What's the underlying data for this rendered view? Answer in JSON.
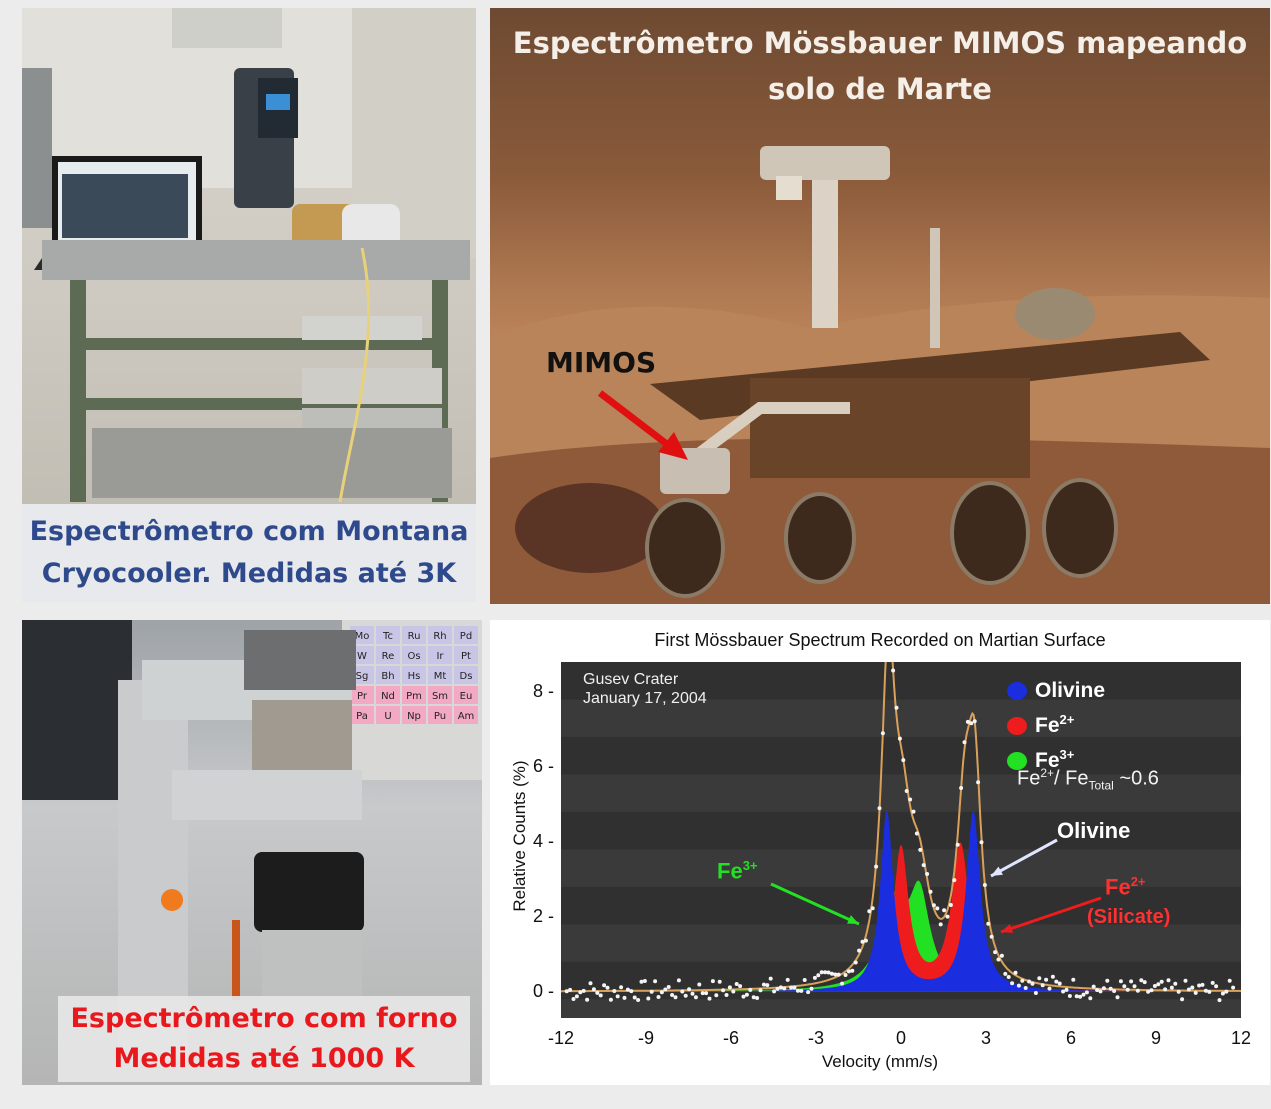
{
  "lab_panel": {
    "caption_line1": "Espectrômetro com Montana",
    "caption_line2": "Cryocooler. Medidas até 3K",
    "caption_color": "#2e4a8c"
  },
  "mars_panel": {
    "title_line1": "Espectrômetro Mössbauer MIMOS mapeando",
    "title_line2": "solo de Marte",
    "pointer_label": "MIMOS",
    "arrow_color": "#e01010"
  },
  "furnace_panel": {
    "caption_line1": "Espectrômetro com forno",
    "caption_line2": "Medidas até 1000 K",
    "caption_color": "#e8181c",
    "periodic_table_symbols": [
      "Mo",
      "Tc",
      "Ru",
      "Rh",
      "Pd",
      "W",
      "Re",
      "Os",
      "Ir",
      "Pt",
      "Sg",
      "Bh",
      "Hs",
      "Mt",
      "Ds",
      "Pr",
      "Nd",
      "Pm",
      "Sm",
      "Eu",
      "Pa",
      "U",
      "Np",
      "Pu",
      "Am"
    ]
  },
  "chart_data": {
    "type": "area",
    "title": "First Mössbauer Spectrum Recorded on Martian Surface",
    "xlabel": "Velocity (mm/s)",
    "ylabel": "Relative Counts (%)",
    "xlim": [
      -12,
      12
    ],
    "ylim": [
      -0.7,
      8.8
    ],
    "x_ticks": [
      "-12",
      "-9",
      "-6",
      "-3",
      "0",
      "3",
      "6",
      "9",
      "12"
    ],
    "y_ticks": [
      "0",
      "2",
      "4",
      "6",
      "8"
    ],
    "annotation_location": "Gusev Crater",
    "annotation_date": "January 17, 2004",
    "legend": [
      {
        "label": "Olivine",
        "color": "#1a2ee0"
      },
      {
        "label": "Fe",
        "sup": "2+",
        "color": "#ee1c1c"
      },
      {
        "label": "Fe",
        "sup": "3+",
        "color": "#22e022"
      }
    ],
    "ratio_text": {
      "a": "Fe",
      "a_sup": "2+",
      "b": "/ Fe",
      "b_sub": "Total",
      "c": " ~0.6"
    },
    "callouts": {
      "olivine": "Olivine",
      "fe2": "Fe",
      "fe2_sup": "2+",
      "fe2_note": "(Silicate)",
      "fe3": "Fe",
      "fe3_sup": "3+"
    },
    "series": [
      {
        "name": "Olivine",
        "color": "#1a2ee0",
        "peaks": [
          {
            "x": -0.5,
            "y": 4.8,
            "w": 0.28
          },
          {
            "x": 2.55,
            "y": 4.8,
            "w": 0.3
          }
        ]
      },
      {
        "name": "Fe2+",
        "color": "#ee1c1c",
        "peaks": [
          {
            "x": 0.0,
            "y": 3.8,
            "w": 0.33
          },
          {
            "x": 2.1,
            "y": 3.9,
            "w": 0.38
          }
        ]
      },
      {
        "name": "Fe3+",
        "color": "#22e022",
        "peaks": [
          {
            "x": -0.3,
            "y": 2.2,
            "w": 0.55
          },
          {
            "x": 0.65,
            "y": 2.4,
            "w": 0.45
          }
        ]
      },
      {
        "name": "fit",
        "color": "#d9a05a",
        "peaks": [
          {
            "x": -0.45,
            "y": 8.1,
            "w": 0.3
          },
          {
            "x": 0.05,
            "y": 3.2,
            "w": 0.4
          },
          {
            "x": 0.65,
            "y": 2.3,
            "w": 0.45
          },
          {
            "x": 2.25,
            "y": 4.3,
            "w": 0.35
          },
          {
            "x": 2.6,
            "y": 4.8,
            "w": 0.28
          }
        ]
      }
    ]
  }
}
